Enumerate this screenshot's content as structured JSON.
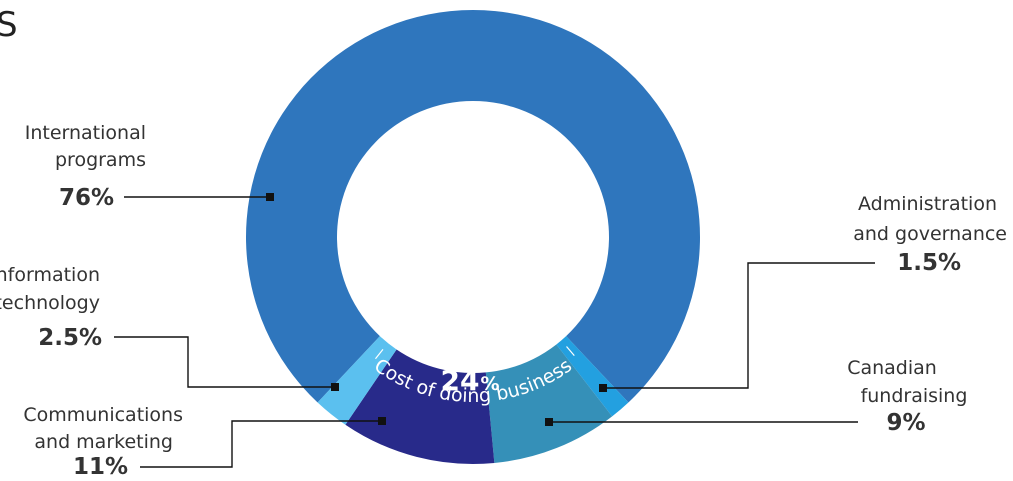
{
  "page": {
    "heading_fragment": "S"
  },
  "chart_data": {
    "type": "pie",
    "variant": "donut",
    "segments": [
      {
        "key": "international",
        "label_lines": [
          "International",
          "programs"
        ],
        "percent_text": "76%",
        "value": 76,
        "color": "#2f76bd"
      },
      {
        "key": "admin",
        "label_lines": [
          "Administration",
          "and governance"
        ],
        "percent_text": "1.5%",
        "value": 1.5,
        "color": "#23a0e0"
      },
      {
        "key": "fundraising",
        "label_lines": [
          "Canadian",
          "fundraising"
        ],
        "percent_text": "9%",
        "value": 9,
        "color": "#3590b8"
      },
      {
        "key": "comms",
        "label_lines": [
          "Communications",
          "and marketing"
        ],
        "percent_text": "11%",
        "value": 11,
        "color": "#282a8a"
      },
      {
        "key": "it",
        "label_lines": [
          "Information",
          "technology"
        ],
        "percent_text": "2.5%",
        "value": 2.5,
        "color": "#5bc0ef"
      }
    ],
    "center": {
      "value": "24",
      "symbol": "%",
      "caption": "Cost of doing business"
    }
  }
}
